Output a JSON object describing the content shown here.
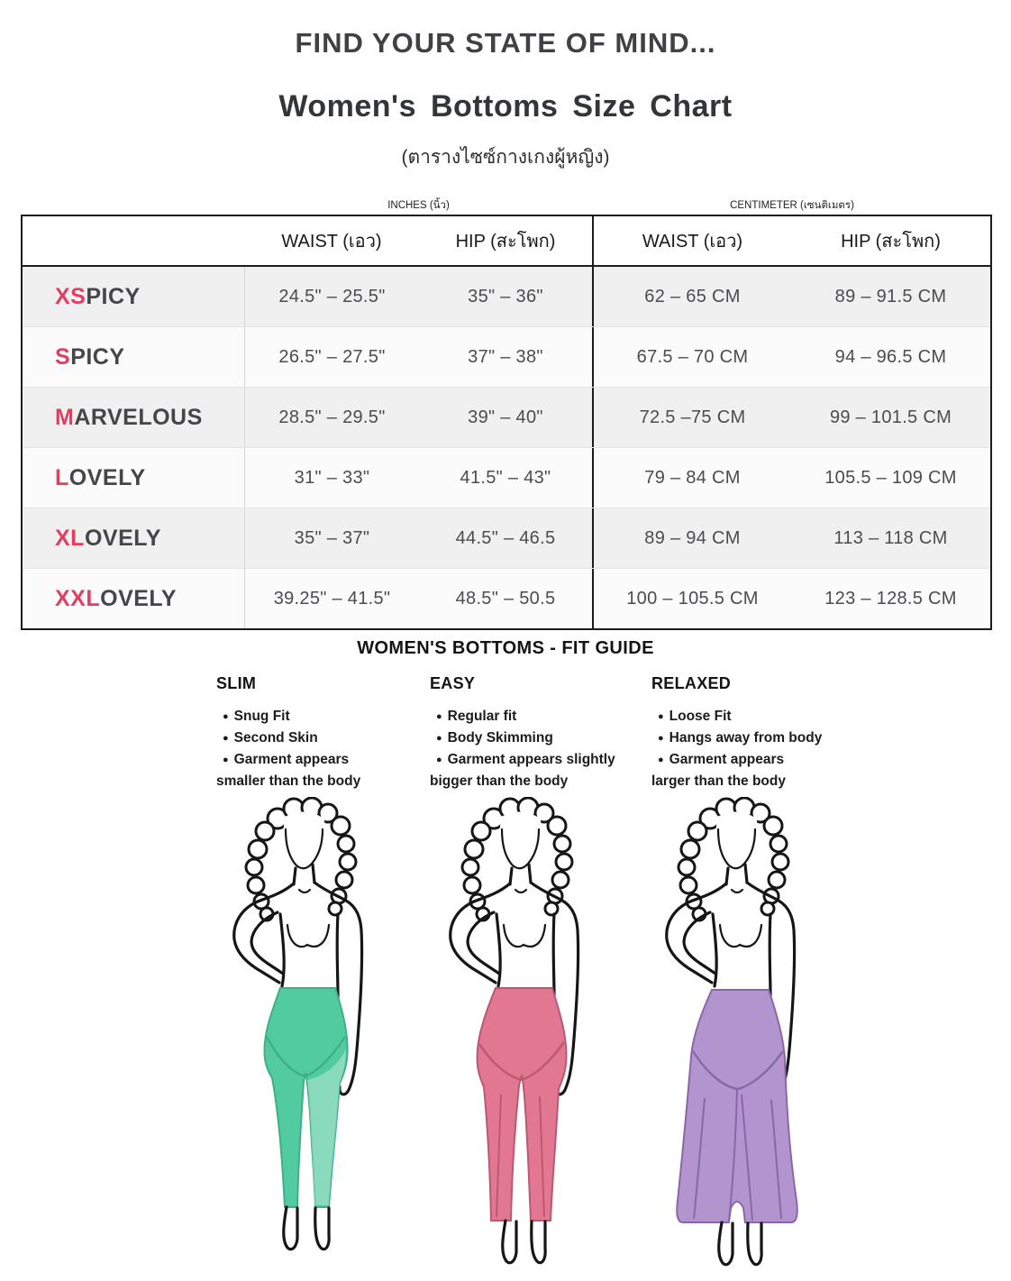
{
  "header": {
    "title": "FIND YOUR STATE OF MIND...",
    "subtitle": "Women's Bottoms Size Chart",
    "subtitle_thai": "(ตารางไซซ์กางเกงผู้หญิง)"
  },
  "size_table": {
    "unit_labels": {
      "inches": "INCHES (นิ้ว)",
      "centimeter": "CENTIMETER (เซนติเมตร)"
    },
    "column_headers": {
      "waist": "WAIST (เอว)",
      "hip": "HIP (สะโพก)"
    },
    "rows": [
      {
        "size_accent": "XS",
        "size_rest": "PICY",
        "waist_in": "24.5\" – 25.5\"",
        "hip_in": "35\" – 36\"",
        "waist_cm": "62 – 65 CM",
        "hip_cm": "89 – 91.5 CM"
      },
      {
        "size_accent": "S",
        "size_rest": "PICY",
        "waist_in": "26.5\" – 27.5\"",
        "hip_in": "37\" – 38\"",
        "waist_cm": "67.5 – 70 CM",
        "hip_cm": "94 – 96.5 CM"
      },
      {
        "size_accent": "M",
        "size_rest": "ARVELOUS",
        "waist_in": "28.5\" – 29.5\"",
        "hip_in": "39\" – 40\"",
        "waist_cm": "72.5 –75 CM",
        "hip_cm": "99 – 101.5 CM"
      },
      {
        "size_accent": "L",
        "size_rest": "OVELY",
        "waist_in": "31\" – 33\"",
        "hip_in": "41.5\" – 43\"",
        "waist_cm": "79 – 84 CM",
        "hip_cm": "105.5 – 109 CM"
      },
      {
        "size_accent": "XL",
        "size_rest": "OVELY",
        "waist_in": "35\" – 37\"",
        "hip_in": "44.5\" – 46.5",
        "waist_cm": "89 – 94 CM",
        "hip_cm": "113 – 118 CM"
      },
      {
        "size_accent": "XXL",
        "size_rest": "OVELY",
        "waist_in": "39.25\" – 41.5\"",
        "hip_in": "48.5\" – 50.5",
        "waist_cm": "100 – 105.5 CM",
        "hip_cm": "123 – 128.5 CM"
      }
    ]
  },
  "fit_guide": {
    "title": "WOMEN'S BOTTOMS -  FIT GUIDE",
    "columns": [
      {
        "name": "SLIM",
        "lines": [
          [
            "Snug Fit"
          ],
          [
            "Second Skin"
          ],
          [
            "Garment appears",
            "smaller than the body"
          ]
        ],
        "fit": "slim",
        "pants_color": "#53CBA0",
        "pants_shade": "#3FAF87"
      },
      {
        "name": "EASY",
        "lines": [
          [
            "Regular fit"
          ],
          [
            "Body Skimming"
          ],
          [
            "Garment appears slightly",
            "bigger than the body"
          ]
        ],
        "fit": "easy",
        "pants_color": "#E27792",
        "pants_shade": "#BB5873"
      },
      {
        "name": "RELAXED",
        "lines": [
          [
            "Loose Fit"
          ],
          [
            "Hangs away from body"
          ],
          [
            "Garment appears",
            "larger than the body"
          ]
        ],
        "fit": "relaxed",
        "pants_color": "#B295CE",
        "pants_shade": "#8A67A8"
      }
    ]
  },
  "colors": {
    "accent_pink": "#E33E61",
    "text_dark": "#3F4144",
    "table_text": "#4C4C50"
  }
}
